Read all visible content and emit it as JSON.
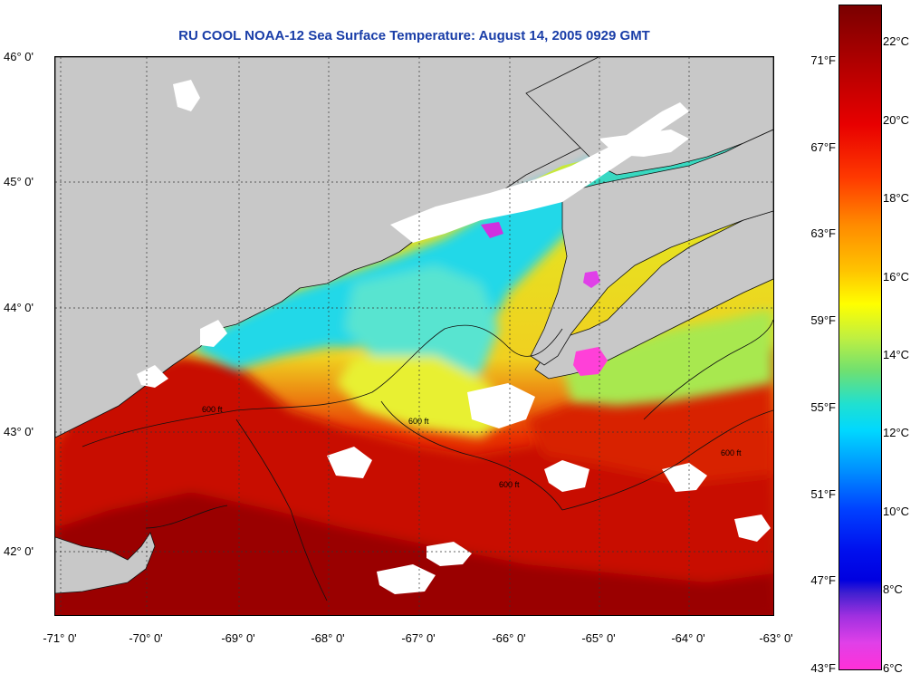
{
  "title": "RU COOL  NOAA-12  Sea Surface Temperature:  August 14, 2005 0929 GMT",
  "latitude_labels": [
    "46° 0'",
    "45° 0'",
    "44° 0'",
    "43° 0'",
    "42° 0'"
  ],
  "longitude_labels": [
    "-71° 0'",
    "-70° 0'",
    "-69° 0'",
    "-68° 0'",
    "-67° 0'",
    "-66° 0'",
    "-65° 0'",
    "-64° 0'",
    "-63° 0'"
  ],
  "fahrenheit_labels": [
    "71°F",
    "67°F",
    "63°F",
    "59°F",
    "55°F",
    "51°F",
    "47°F",
    "43°F"
  ],
  "celsius_labels": [
    "22°C",
    "20°C",
    "18°C",
    "16°C",
    "14°C",
    "12°C",
    "10°C",
    "8°C",
    "6°C"
  ],
  "contour_label": "600 ft",
  "colors": {
    "land": "#c8c8c8",
    "cloud": "#ffffff",
    "warm": "#d21400",
    "hot": "#a00000",
    "cool": "#00e0e8",
    "mid": "#e8f020",
    "cold": "#ff40d8",
    "title": "#1a3ea8"
  }
}
